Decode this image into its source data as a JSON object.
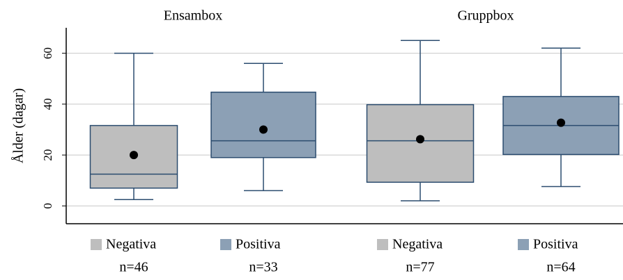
{
  "chart_data": {
    "type": "box",
    "y_label": "Ålder (dagar)",
    "ylim": [
      -7,
      70
    ],
    "yticks": [
      0,
      20,
      40,
      60
    ],
    "grid": true,
    "edge_color": "#2b4c6f",
    "mean_color": "#000000",
    "groups": [
      {
        "title": "Ensambox",
        "boxes": [
          {
            "name": "Negativa",
            "n": "n=46",
            "color": "#bebebe",
            "low": 2.5,
            "q1": 7,
            "median": 12.5,
            "q3": 31.6,
            "high": 60,
            "mean": 20
          },
          {
            "name": "Positiva",
            "n": "n=33",
            "color": "#8ca0b5",
            "low": 6,
            "q1": 19,
            "median": 25.6,
            "q3": 44.7,
            "high": 56,
            "mean": 30
          }
        ]
      },
      {
        "title": "Gruppbox",
        "boxes": [
          {
            "name": "Negativa",
            "n": "n=77",
            "color": "#bebebe",
            "low": 2,
            "q1": 9.3,
            "median": 25.6,
            "q3": 39.8,
            "high": 65,
            "mean": 26.2
          },
          {
            "name": "Positiva",
            "n": "n=64",
            "color": "#8ca0b5",
            "low": 7.6,
            "q1": 20.2,
            "median": 31.6,
            "q3": 43,
            "high": 62,
            "mean": 32.7
          }
        ]
      }
    ]
  }
}
